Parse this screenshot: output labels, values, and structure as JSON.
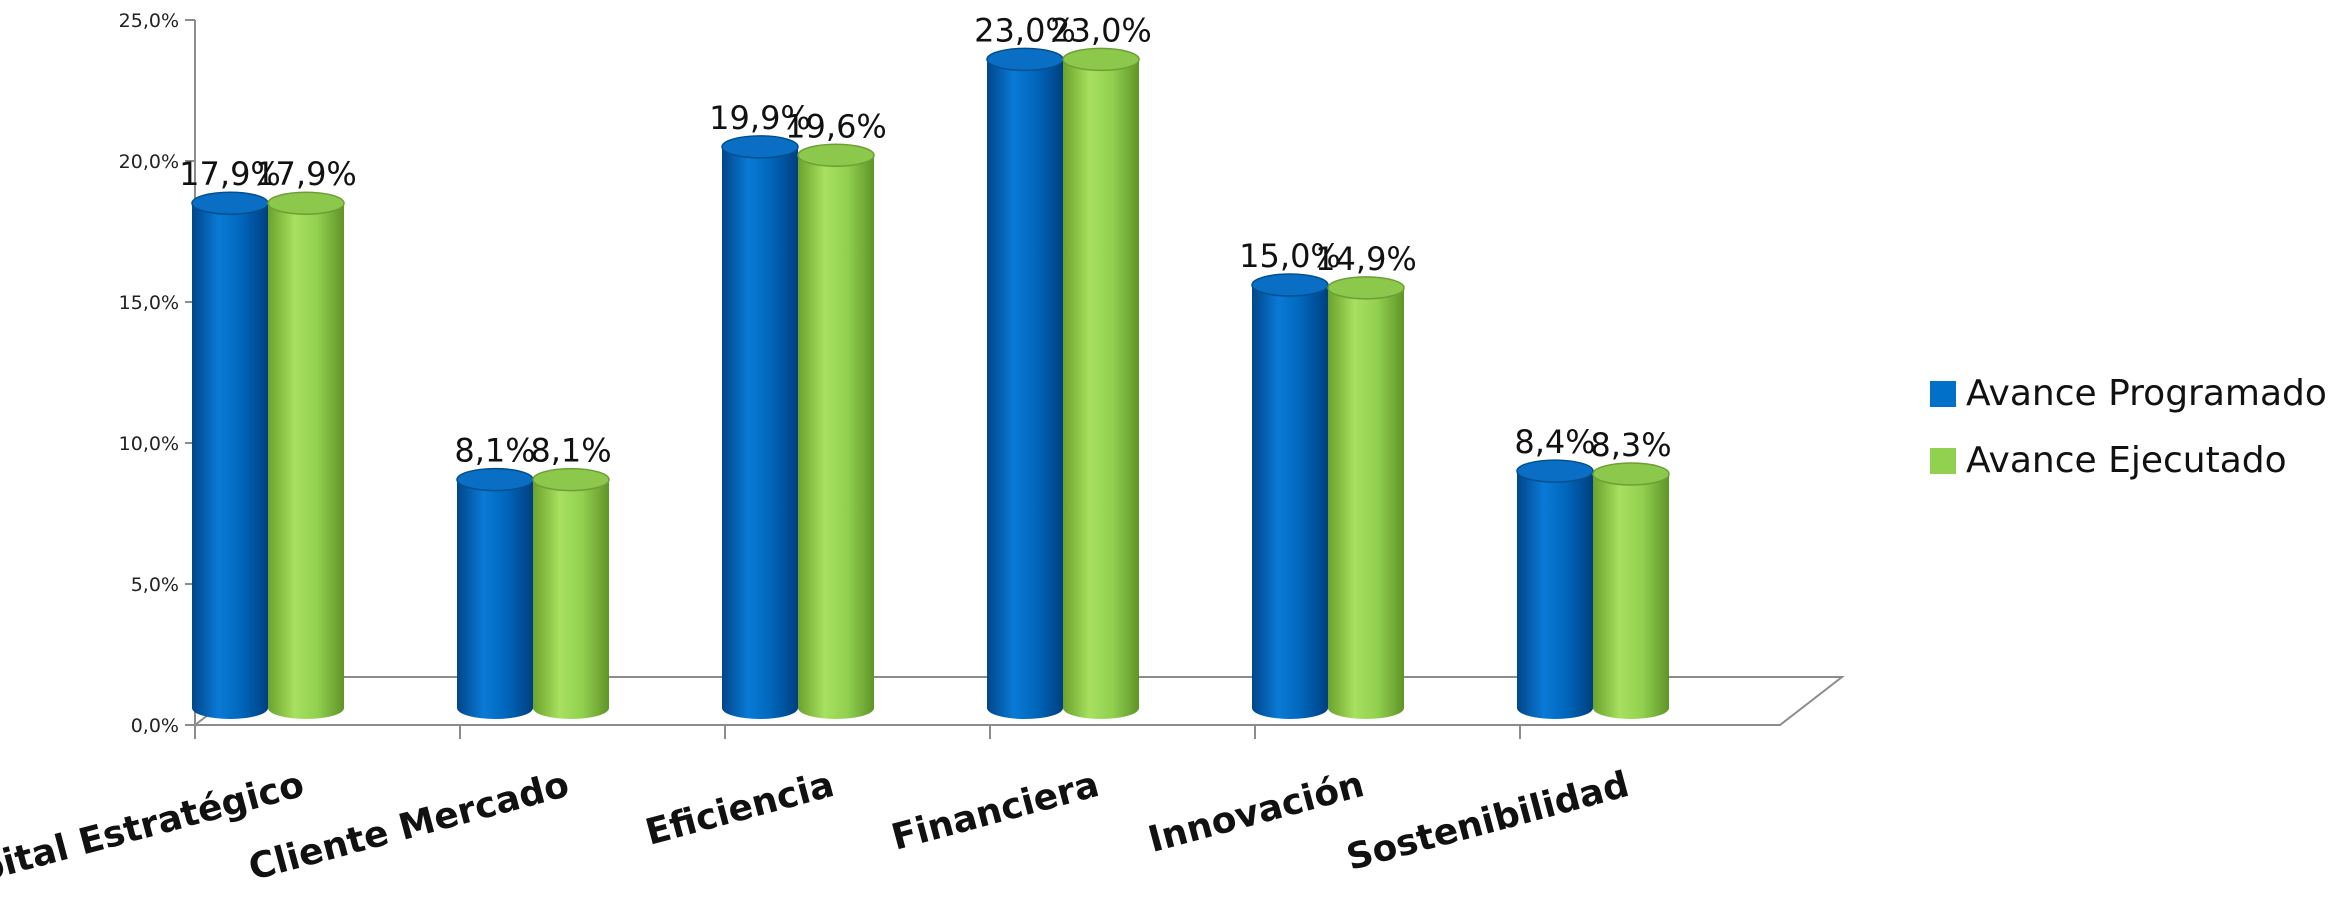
{
  "chart_data": {
    "type": "bar",
    "title": "",
    "xlabel": "",
    "ylabel": "",
    "categories": [
      "Capital Estratégico",
      "Cliente Mercado",
      "Eficiencia",
      "Financiera",
      "Innovación",
      "Sostenibilidad"
    ],
    "series": [
      {
        "name": "Avance Programado",
        "color": "#0070C8",
        "values": [
          17.9,
          8.1,
          19.9,
          23.0,
          15.0,
          8.4
        ],
        "labels": [
          "17,9%",
          "8,1%",
          "19,9%",
          "23,0%",
          "15,0%",
          "8,4%"
        ]
      },
      {
        "name": "Avance Ejecutado",
        "color": "#92D050",
        "values": [
          17.9,
          8.1,
          19.6,
          23.0,
          14.9,
          8.3
        ],
        "labels": [
          "17,9%",
          "8,1%",
          "19,6%",
          "23,0%",
          "14,9%",
          "8,3%"
        ]
      }
    ],
    "ylim": [
      0,
      25
    ],
    "yticks": [
      "0,0%",
      "5,0%",
      "10,0%",
      "15,0%",
      "20,0%",
      "25,0%"
    ],
    "legend_position": "right",
    "grid": false
  }
}
